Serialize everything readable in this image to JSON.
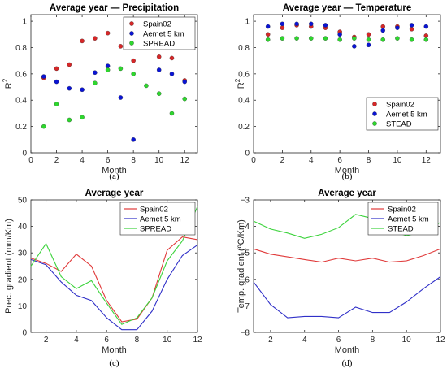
{
  "chart_data": [
    {
      "type": "scatter",
      "panel": "(a)",
      "title": "Average year — Precipitation",
      "xlabel": "Month",
      "ylabel": "R",
      "ylabel_sup": "2",
      "xlim": [
        0,
        13
      ],
      "ylim": [
        0,
        1.05
      ],
      "xticks": [
        0,
        2,
        4,
        6,
        8,
        10,
        12
      ],
      "yticks": [
        0,
        0.2,
        0.4,
        0.6,
        0.8,
        1
      ],
      "x": [
        1,
        2,
        3,
        4,
        5,
        6,
        7,
        8,
        9,
        10,
        11,
        12
      ],
      "series": [
        {
          "name": "Spain02",
          "color": "#d62728",
          "values": [
            0.57,
            0.64,
            0.67,
            0.85,
            0.87,
            0.91,
            0.81,
            0.7,
            0.81,
            0.73,
            0.72,
            0.55
          ]
        },
        {
          "name": "Aemet 5 km",
          "color": "#0a14d4",
          "values": [
            0.58,
            0.54,
            0.49,
            0.48,
            0.61,
            0.66,
            0.42,
            0.1,
            0.84,
            0.63,
            0.6,
            0.54
          ]
        },
        {
          "name": "SPREAD",
          "color": "#2ed62e",
          "values": [
            0.2,
            0.37,
            0.25,
            0.27,
            0.53,
            0.63,
            0.64,
            0.6,
            0.51,
            0.45,
            0.3,
            0.41
          ]
        }
      ],
      "legend": "top-right",
      "grid": false
    },
    {
      "type": "scatter",
      "panel": "(b)",
      "title": "Average year — Temperature",
      "xlabel": "Month",
      "ylabel": "R",
      "ylabel_sup": "2",
      "xlim": [
        0,
        13
      ],
      "ylim": [
        0,
        1.05
      ],
      "xticks": [
        0,
        2,
        4,
        6,
        8,
        10,
        12
      ],
      "yticks": [
        0,
        0.2,
        0.4,
        0.6,
        0.8,
        1
      ],
      "x": [
        1,
        2,
        3,
        4,
        5,
        6,
        7,
        8,
        9,
        10,
        11,
        12
      ],
      "series": [
        {
          "name": "Spain02",
          "color": "#d62728",
          "values": [
            0.9,
            0.95,
            0.97,
            0.96,
            0.95,
            0.92,
            0.88,
            0.9,
            0.96,
            0.96,
            0.94,
            0.89
          ]
        },
        {
          "name": "Aemet 5 km",
          "color": "#0a14d4",
          "values": [
            0.96,
            0.98,
            0.98,
            0.98,
            0.97,
            0.9,
            0.81,
            0.82,
            0.93,
            0.95,
            0.97,
            0.96
          ]
        },
        {
          "name": "STEAD",
          "color": "#2ed62e",
          "values": [
            0.86,
            0.87,
            0.87,
            0.87,
            0.87,
            0.86,
            0.87,
            0.86,
            0.86,
            0.87,
            0.86,
            0.86
          ]
        }
      ],
      "legend": "bottom-right",
      "grid": false
    },
    {
      "type": "line",
      "panel": "(c)",
      "title": "Average year",
      "xlabel": "Month",
      "ylabel": "Prec. gradient (mm/Km)",
      "xlim": [
        1,
        12
      ],
      "ylim": [
        0,
        50
      ],
      "xticks": [
        2,
        4,
        6,
        8,
        10,
        12
      ],
      "yticks": [
        0,
        10,
        20,
        30,
        40,
        50
      ],
      "x": [
        1,
        2,
        3,
        4,
        5,
        6,
        7,
        8,
        9,
        10,
        11,
        12
      ],
      "series": [
        {
          "name": "Spain02",
          "color": "#e03a3a",
          "values": [
            28,
            26,
            23,
            29.5,
            25,
            12,
            4,
            5,
            13,
            31,
            36,
            35
          ]
        },
        {
          "name": "Aemet 5 km",
          "color": "#3030c8",
          "values": [
            27.5,
            25.5,
            19,
            14,
            12,
            5.5,
            1,
            1,
            8,
            20,
            29,
            33
          ]
        },
        {
          "name": "SPREAD",
          "color": "#3cd33c",
          "values": [
            25,
            33.5,
            21,
            16.5,
            19.5,
            11,
            3,
            5.5,
            13,
            27,
            34.5,
            47.5
          ]
        }
      ],
      "legend": "top-right",
      "grid": false
    },
    {
      "type": "line",
      "panel": "(d)",
      "title": "Average year",
      "xlabel": "Month",
      "ylabel": "Temp. gradient (ºC/Km)",
      "xlim": [
        1,
        12
      ],
      "ylim": [
        -8,
        -3
      ],
      "xticks": [
        2,
        4,
        6,
        8,
        10,
        12
      ],
      "yticks": [
        -8,
        -7,
        -6,
        -5,
        -4,
        -3
      ],
      "x": [
        1,
        2,
        3,
        4,
        5,
        6,
        7,
        8,
        9,
        10,
        11,
        12
      ],
      "series": [
        {
          "name": "Spain02",
          "color": "#e03a3a",
          "values": [
            -4.85,
            -5.05,
            -5.15,
            -5.25,
            -5.35,
            -5.2,
            -5.3,
            -5.2,
            -5.35,
            -5.3,
            -5.1,
            -4.85
          ]
        },
        {
          "name": "Aemet 5 km",
          "color": "#3030c8",
          "values": [
            -6.1,
            -6.95,
            -7.45,
            -7.4,
            -7.4,
            -7.45,
            -7.05,
            -7.25,
            -7.25,
            -6.85,
            -6.35,
            -5.9
          ]
        },
        {
          "name": "STEAD",
          "color": "#3cd33c",
          "values": [
            -3.8,
            -4.1,
            -4.25,
            -4.45,
            -4.3,
            -4.05,
            -3.55,
            -3.7,
            -4.15,
            -4.35,
            -4.2,
            -3.85
          ]
        }
      ],
      "legend": "top-right",
      "grid": false
    }
  ]
}
